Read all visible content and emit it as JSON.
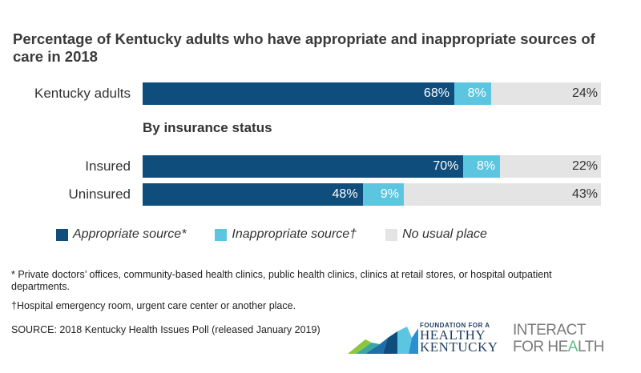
{
  "title": "Percentage of Kentucky adults who have appropriate and inappropriate sources of care in 2018",
  "section_label": "By insurance status",
  "colors": {
    "appropriate": "#0e4d7c",
    "inappropriate": "#5cc6e0",
    "no_usual_place": "#e4e4e5"
  },
  "chart_data": {
    "type": "bar",
    "orientation": "horizontal",
    "stacked": true,
    "title": "Percentage of Kentucky adults who have appropriate and inappropriate sources of care in 2018",
    "categories": [
      "Kentucky adults",
      "Insured",
      "Uninsured"
    ],
    "series": [
      {
        "name": "Appropriate source*",
        "values": [
          68,
          70,
          48
        ],
        "labels": [
          "68%",
          "70%",
          "48%"
        ]
      },
      {
        "name": "Inappropriate source†",
        "values": [
          8,
          8,
          9
        ],
        "labels": [
          "8%",
          "8%",
          "9%"
        ]
      },
      {
        "name": "No usual place",
        "values": [
          24,
          22,
          43
        ],
        "labels": [
          "24%",
          "22%",
          "43%"
        ]
      }
    ],
    "xlim": [
      0,
      100
    ],
    "grid": false,
    "legend_position": "bottom"
  },
  "footnotes": {
    "asterisk": "* Private doctors’ offices, community-based health clinics, public health clinics, clinics at retail stores, or hospital outpatient departments.",
    "dagger": "†Hospital emergency room, urgent care center or another place.",
    "source": "SOURCE: 2018 Kentucky Health Issues Poll (released January 2019)"
  },
  "logos": {
    "fhk_line1": "FOUNDATION FOR A",
    "fhk_line2": "HEALTHY",
    "fhk_line3": "KENTUCKY",
    "ifh_line1": "INTERACT",
    "ifh_line2a": "FOR HE",
    "ifh_line2b": "A",
    "ifh_line2c": "LTH"
  }
}
